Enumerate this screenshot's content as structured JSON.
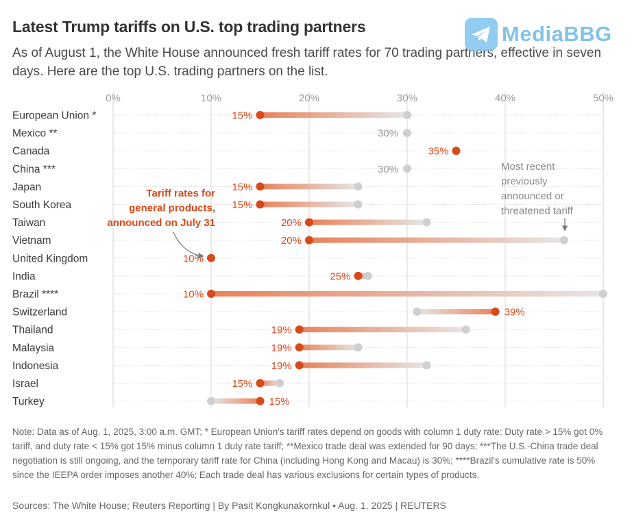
{
  "header": {
    "title": "Latest Trump tariffs on U.S. top trading partners",
    "subtitle": "As of August 1, the White House announced fresh tariff rates for 70 trading partners, effective in seven days. Here are the top U.S. trading partners on the list."
  },
  "watermark": {
    "text": "MediaBBG",
    "icon": "telegram-icon"
  },
  "colors": {
    "new_rate": "#d9491a",
    "previous_rate": "#cfcfcf",
    "grid": "#d6d6d6",
    "label_gray": "#9a9a9a"
  },
  "chart_data": {
    "type": "dumbbell",
    "x_ticks": [
      "0%",
      "10%",
      "20%",
      "30%",
      "40%",
      "50%"
    ],
    "xlim": [
      0,
      50
    ],
    "rows": [
      {
        "country": "European Union *",
        "new": 15,
        "prev": 30,
        "new_label": "15%",
        "prev_label": ""
      },
      {
        "country": "Mexico **",
        "new": null,
        "prev": 30,
        "new_label": "",
        "prev_label": "30%"
      },
      {
        "country": "Canada",
        "new": 35,
        "prev": null,
        "new_label": "35%",
        "prev_label": ""
      },
      {
        "country": "China ***",
        "new": null,
        "prev": 30,
        "new_label": "",
        "prev_label": "30%"
      },
      {
        "country": "Japan",
        "new": 15,
        "prev": 25,
        "new_label": "15%",
        "prev_label": ""
      },
      {
        "country": "South Korea",
        "new": 15,
        "prev": 25,
        "new_label": "15%",
        "prev_label": ""
      },
      {
        "country": "Taiwan",
        "new": 20,
        "prev": 32,
        "new_label": "20%",
        "prev_label": ""
      },
      {
        "country": "Vietnam",
        "new": 20,
        "prev": 46,
        "new_label": "20%",
        "prev_label": ""
      },
      {
        "country": "United Kingdom",
        "new": 10,
        "prev": null,
        "new_label": "10%",
        "prev_label": ""
      },
      {
        "country": "India",
        "new": 25,
        "prev": 26,
        "new_label": "25%",
        "prev_label": ""
      },
      {
        "country": "Brazil ****",
        "new": 10,
        "prev": 50,
        "new_label": "10%",
        "prev_label": ""
      },
      {
        "country": "Switzerland",
        "new": 39,
        "prev": 31,
        "new_label": "39%",
        "prev_label": ""
      },
      {
        "country": "Thailand",
        "new": 19,
        "prev": 36,
        "new_label": "19%",
        "prev_label": ""
      },
      {
        "country": "Malaysia",
        "new": 19,
        "prev": 25,
        "new_label": "19%",
        "prev_label": ""
      },
      {
        "country": "Indonesia",
        "new": 19,
        "prev": 32,
        "new_label": "19%",
        "prev_label": ""
      },
      {
        "country": "Israel",
        "new": 15,
        "prev": 17,
        "new_label": "15%",
        "prev_label": ""
      },
      {
        "country": "Turkey",
        "new": 15,
        "prev": 10,
        "new_label": "15%",
        "prev_label": ""
      }
    ],
    "annotations": {
      "new_rate": [
        "Tariff rates for",
        "general products,",
        "announced on July 31"
      ],
      "previous_rate": [
        "Most recent",
        "previously",
        "announced or",
        "threatened tariff"
      ]
    }
  },
  "footer": {
    "note": "Note: Data as of Aug. 1, 2025, 3:00 a.m. GMT; * European Union's tariff rates depend on goods with column 1 duty rate: Duty rate > 15% got 0% tariff, and duty rate < 15% got 15% minus column 1 duty rate tariff; **Mexico trade deal was extended for 90 days; ***The U.S.-China trade deal negotiation is still ongoing, and the temporary tariff rate for China (including Hong Kong and Macau) is 30%; ****Brazil's cumulative rate is 50% since the IEEPA order imposes another 40%; Each trade deal has various exclusions for certain types of products.",
    "sources": "Sources: The White House; Reuters Reporting | By Pasit Kongkunakornkul • Aug. 1, 2025 | REUTERS"
  }
}
